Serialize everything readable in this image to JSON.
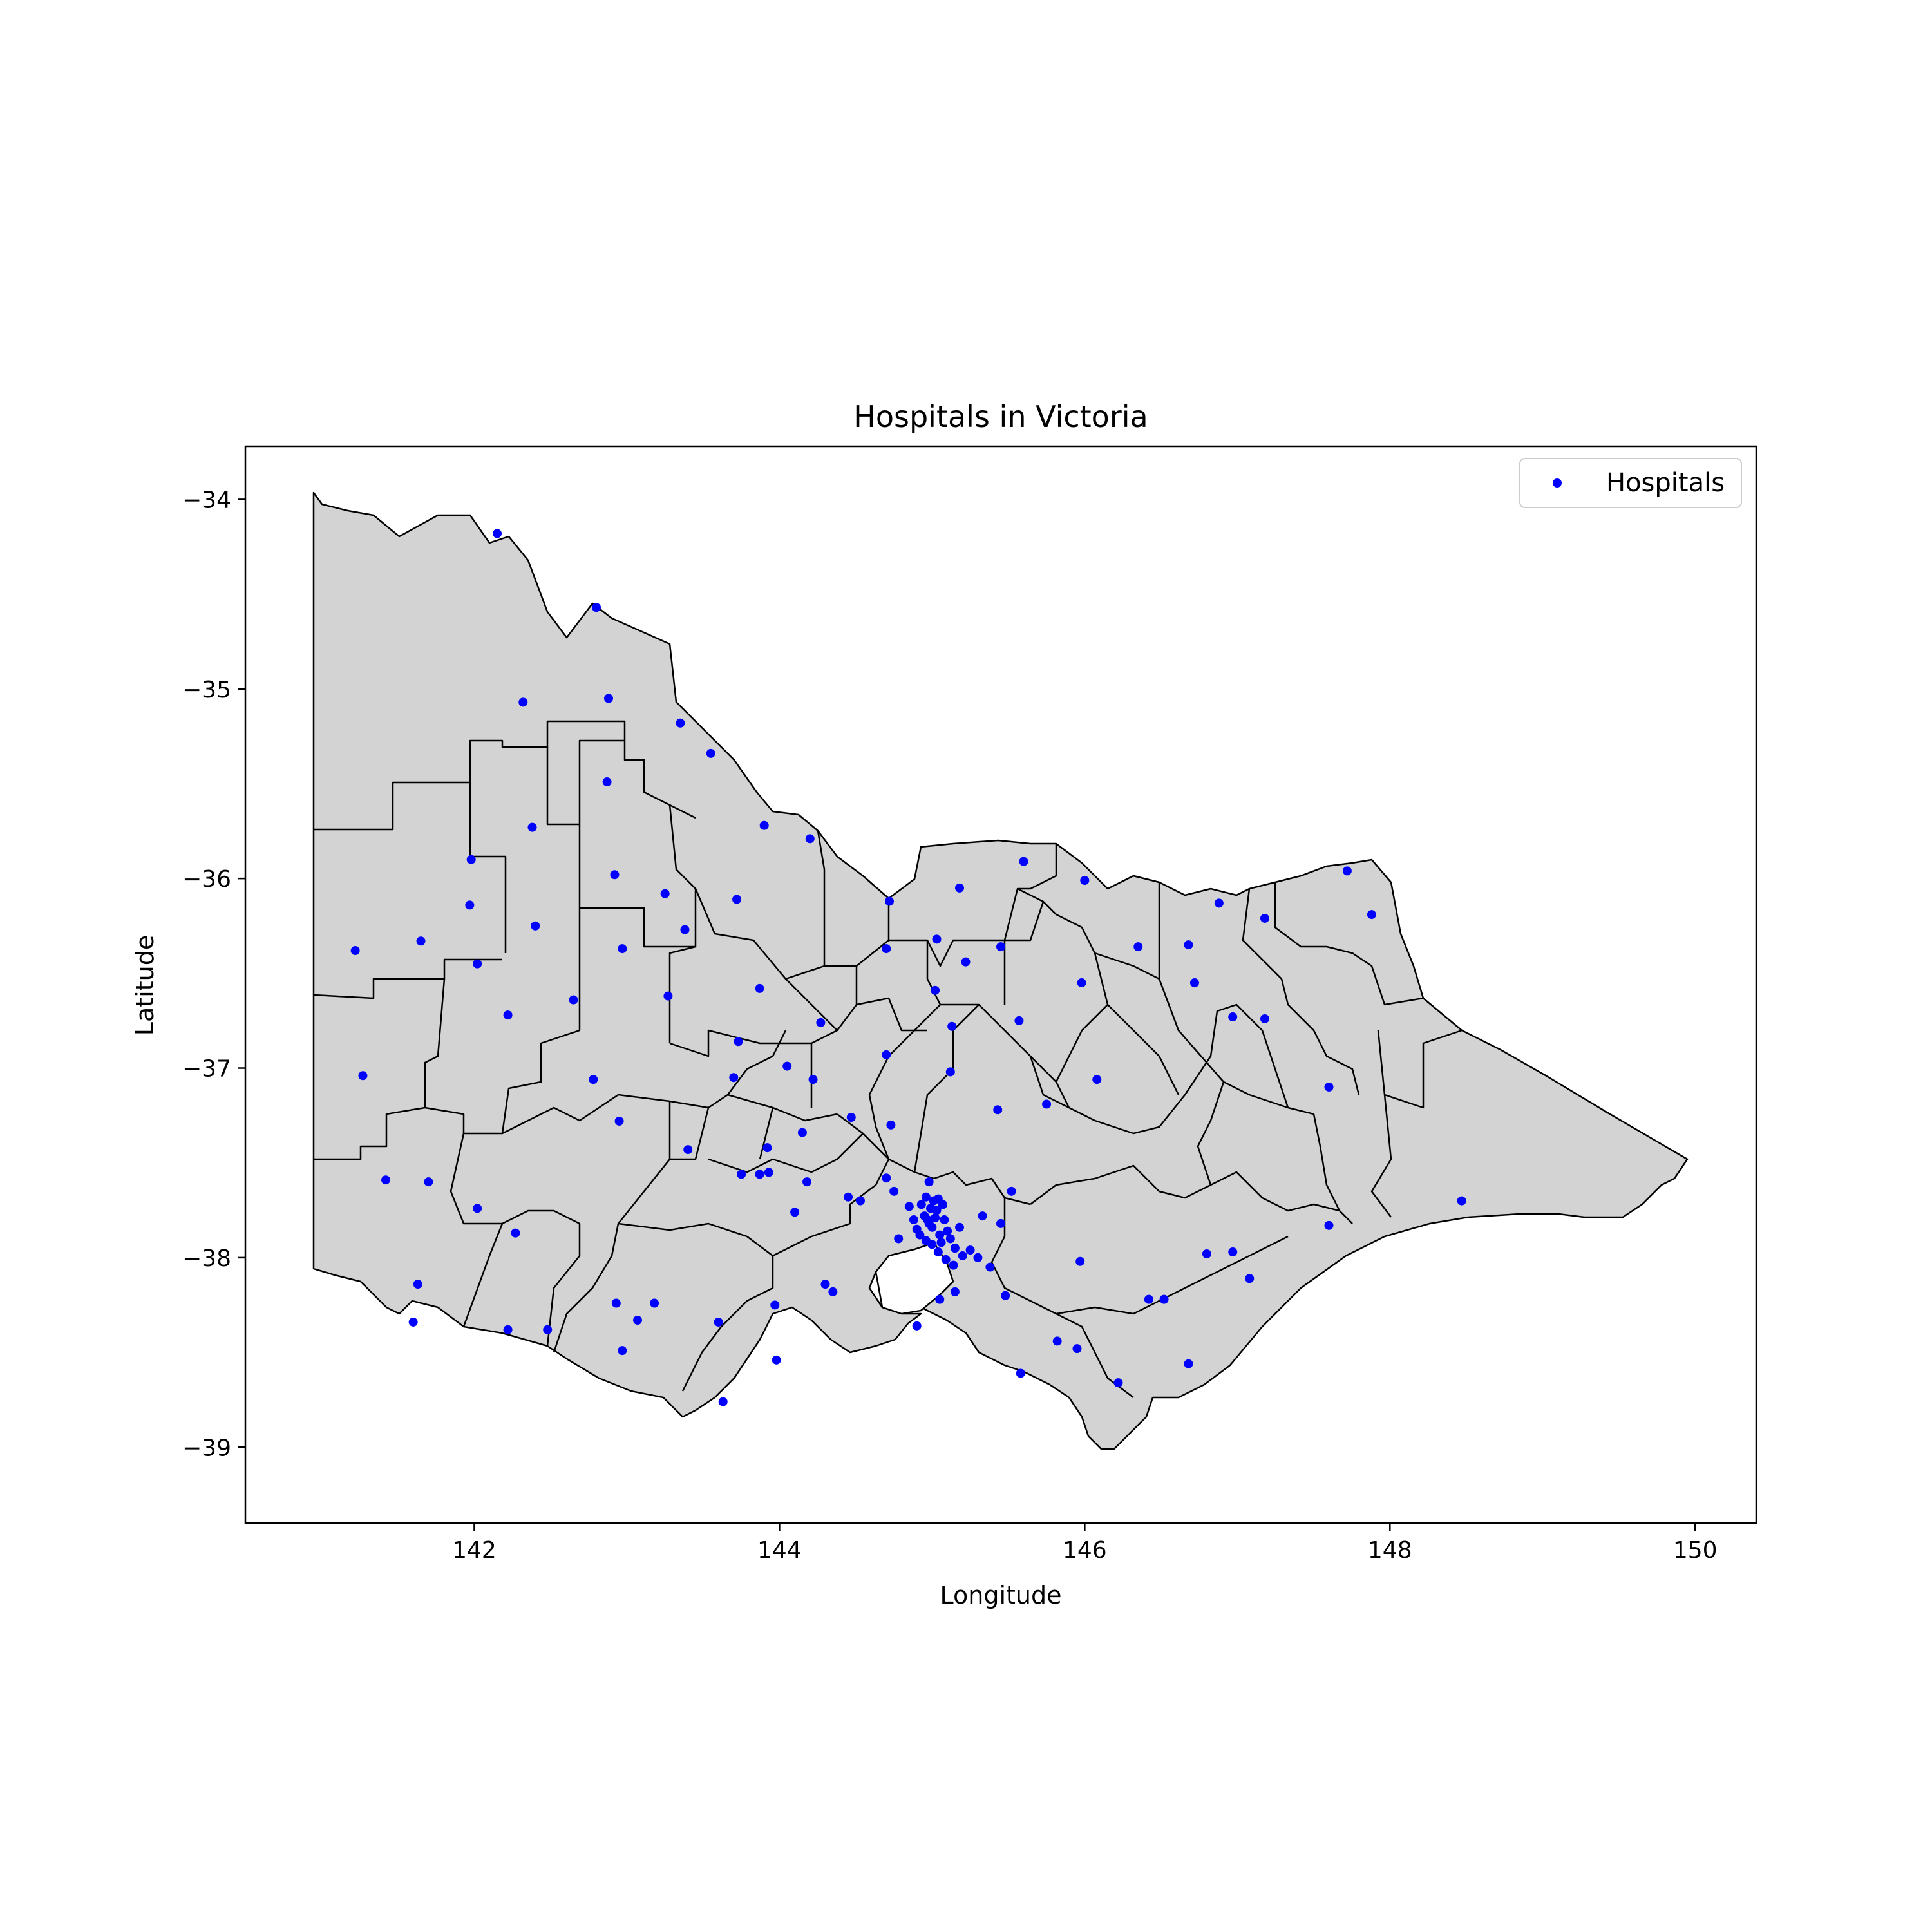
{
  "chart_data": {
    "type": "scatter",
    "title": "Hospitals in Victoria",
    "xlabel": "Longitude",
    "ylabel": "Latitude",
    "xlim": [
      140.5,
      150.4
    ],
    "ylim": [
      -39.4,
      -33.72
    ],
    "xticks": [
      142,
      144,
      146,
      148,
      150
    ],
    "yticks": [
      -34,
      -35,
      -36,
      -37,
      -38,
      -39
    ],
    "xtick_labels": [
      "142",
      "144",
      "146",
      "148",
      "150"
    ],
    "ytick_labels": [
      "−34",
      "−35",
      "−36",
      "−37",
      "−38",
      "−39"
    ],
    "grid": false,
    "legend": {
      "placement": "top-right",
      "entries": [
        "Hospitals"
      ]
    },
    "colors": {
      "points": "#0000ff",
      "region_fill": "#d3d3d3",
      "region_edge": "#000000"
    },
    "series": [
      {
        "name": "Hospitals",
        "points": [
          [
            142.15,
            -34.18
          ],
          [
            142.8,
            -34.57
          ],
          [
            142.32,
            -35.07
          ],
          [
            142.88,
            -35.05
          ],
          [
            143.35,
            -35.18
          ],
          [
            143.55,
            -35.34
          ],
          [
            142.87,
            -35.49
          ],
          [
            142.38,
            -35.73
          ],
          [
            143.9,
            -35.72
          ],
          [
            144.2,
            -35.79
          ],
          [
            141.98,
            -35.9
          ],
          [
            142.92,
            -35.98
          ],
          [
            143.25,
            -36.08
          ],
          [
            143.72,
            -36.11
          ],
          [
            143.38,
            -36.27
          ],
          [
            141.97,
            -36.14
          ],
          [
            142.4,
            -36.25
          ],
          [
            141.65,
            -36.33
          ],
          [
            141.22,
            -36.38
          ],
          [
            142.97,
            -36.37
          ],
          [
            142.02,
            -36.45
          ],
          [
            143.87,
            -36.58
          ],
          [
            143.27,
            -36.62
          ],
          [
            142.65,
            -36.64
          ],
          [
            142.22,
            -36.72
          ],
          [
            144.72,
            -36.12
          ],
          [
            145.18,
            -36.05
          ],
          [
            145.03,
            -36.32
          ],
          [
            144.7,
            -36.37
          ],
          [
            145.22,
            -36.44
          ],
          [
            145.45,
            -36.36
          ],
          [
            145.6,
            -35.91
          ],
          [
            146.0,
            -36.01
          ],
          [
            146.35,
            -36.36
          ],
          [
            146.88,
            -36.13
          ],
          [
            147.18,
            -36.21
          ],
          [
            147.72,
            -35.96
          ],
          [
            147.88,
            -36.19
          ],
          [
            146.68,
            -36.35
          ],
          [
            145.98,
            -36.55
          ],
          [
            146.72,
            -36.55
          ],
          [
            145.02,
            -36.59
          ],
          [
            145.57,
            -36.75
          ],
          [
            145.13,
            -36.78
          ],
          [
            144.27,
            -36.76
          ],
          [
            144.7,
            -36.93
          ],
          [
            143.73,
            -36.86
          ],
          [
            143.7,
            -37.05
          ],
          [
            144.05,
            -36.99
          ],
          [
            144.22,
            -37.06
          ],
          [
            141.27,
            -37.04
          ],
          [
            142.78,
            -37.06
          ],
          [
            142.95,
            -37.28
          ],
          [
            143.4,
            -37.43
          ],
          [
            144.47,
            -37.26
          ],
          [
            143.92,
            -37.42
          ],
          [
            144.15,
            -37.34
          ],
          [
            145.12,
            -37.02
          ],
          [
            145.43,
            -37.22
          ],
          [
            145.75,
            -37.19
          ],
          [
            146.08,
            -37.06
          ],
          [
            146.97,
            -36.73
          ],
          [
            147.18,
            -36.74
          ],
          [
            147.6,
            -37.1
          ],
          [
            148.47,
            -37.7
          ],
          [
            147.6,
            -37.83
          ],
          [
            141.42,
            -37.59
          ],
          [
            141.7,
            -37.6
          ],
          [
            142.02,
            -37.74
          ],
          [
            142.27,
            -37.87
          ],
          [
            141.63,
            -38.14
          ],
          [
            141.6,
            -38.34
          ],
          [
            142.22,
            -38.38
          ],
          [
            142.48,
            -38.38
          ],
          [
            143.18,
            -38.24
          ],
          [
            142.93,
            -38.24
          ],
          [
            143.07,
            -38.33
          ],
          [
            142.97,
            -38.49
          ],
          [
            143.6,
            -38.34
          ],
          [
            143.98,
            -38.54
          ],
          [
            143.63,
            -38.76
          ],
          [
            143.97,
            -38.25
          ],
          [
            144.3,
            -38.14
          ],
          [
            144.35,
            -38.18
          ],
          [
            144.9,
            -38.36
          ],
          [
            145.05,
            -38.22
          ],
          [
            145.15,
            -38.18
          ],
          [
            145.48,
            -38.2
          ],
          [
            145.58,
            -38.61
          ],
          [
            145.82,
            -38.44
          ],
          [
            145.95,
            -38.48
          ],
          [
            145.97,
            -38.02
          ],
          [
            146.22,
            -38.66
          ],
          [
            146.42,
            -38.22
          ],
          [
            146.52,
            -38.22
          ],
          [
            146.68,
            -38.56
          ],
          [
            146.8,
            -37.98
          ],
          [
            146.97,
            -37.97
          ],
          [
            147.08,
            -38.11
          ],
          [
            144.75,
            -37.65
          ],
          [
            144.85,
            -37.73
          ],
          [
            144.9,
            -37.85
          ],
          [
            144.95,
            -37.78
          ],
          [
            144.97,
            -37.8
          ],
          [
            144.98,
            -37.82
          ],
          [
            145.0,
            -37.84
          ],
          [
            145.02,
            -37.79
          ],
          [
            145.03,
            -37.75
          ],
          [
            145.05,
            -37.88
          ],
          [
            145.06,
            -37.92
          ],
          [
            145.08,
            -37.8
          ],
          [
            145.1,
            -37.86
          ],
          [
            145.12,
            -37.9
          ],
          [
            145.15,
            -37.95
          ],
          [
            145.18,
            -37.84
          ],
          [
            145.2,
            -37.99
          ],
          [
            145.25,
            -37.96
          ],
          [
            145.3,
            -38.0
          ],
          [
            145.33,
            -37.78
          ],
          [
            145.52,
            -37.65
          ],
          [
            144.93,
            -37.72
          ],
          [
            144.96,
            -37.68
          ],
          [
            144.99,
            -37.74
          ],
          [
            145.01,
            -37.7
          ],
          [
            145.04,
            -37.69
          ],
          [
            145.07,
            -37.72
          ],
          [
            144.88,
            -37.8
          ],
          [
            144.92,
            -37.88
          ],
          [
            144.96,
            -37.91
          ],
          [
            145.0,
            -37.93
          ],
          [
            145.04,
            -37.97
          ],
          [
            145.09,
            -38.01
          ],
          [
            145.14,
            -38.04
          ],
          [
            144.7,
            -37.58
          ],
          [
            144.78,
            -37.9
          ],
          [
            144.53,
            -37.7
          ],
          [
            144.45,
            -37.68
          ],
          [
            144.18,
            -37.6
          ],
          [
            143.87,
            -37.56
          ],
          [
            143.93,
            -37.55
          ],
          [
            143.75,
            -37.56
          ],
          [
            145.38,
            -38.05
          ],
          [
            145.45,
            -37.82
          ],
          [
            144.98,
            -37.6
          ],
          [
            144.73,
            -37.3
          ],
          [
            144.1,
            -37.76
          ]
        ]
      }
    ]
  }
}
